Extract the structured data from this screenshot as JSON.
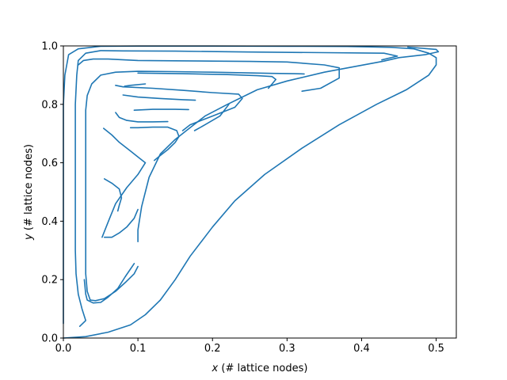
{
  "chart_data": {
    "type": "line",
    "title": "",
    "xlabel_var": "x",
    "xlabel_rest": " (# lattice nodes)",
    "ylabel_var": "y",
    "ylabel_rest": " (# lattice nodes)",
    "xlim": [
      0,
      0.527
    ],
    "ylim": [
      0,
      1.0
    ],
    "xticks": [
      0.0,
      0.1,
      0.2,
      0.3,
      0.4,
      0.5
    ],
    "xtick_labels": [
      "0.0",
      "0.1",
      "0.2",
      "0.3",
      "0.4",
      "0.5"
    ],
    "yticks": [
      0.0,
      0.2,
      0.4,
      0.6,
      0.8,
      1.0
    ],
    "ytick_labels": [
      "0.0",
      "0.2",
      "0.4",
      "0.6",
      "0.8",
      "1.0"
    ],
    "grid": false,
    "line_color": "#1f77b4",
    "series": [
      {
        "points": [
          [
            0.0,
            0.0
          ],
          [
            0.03,
            0.005
          ],
          [
            0.06,
            0.02
          ],
          [
            0.09,
            0.045
          ],
          [
            0.11,
            0.08
          ],
          [
            0.13,
            0.13
          ],
          [
            0.15,
            0.2
          ],
          [
            0.17,
            0.28
          ],
          [
            0.2,
            0.38
          ],
          [
            0.23,
            0.47
          ],
          [
            0.27,
            0.56
          ],
          [
            0.32,
            0.65
          ],
          [
            0.37,
            0.73
          ],
          [
            0.42,
            0.8
          ],
          [
            0.46,
            0.85
          ],
          [
            0.49,
            0.9
          ],
          [
            0.5,
            0.935
          ],
          [
            0.5,
            0.96
          ],
          [
            0.49,
            0.975
          ],
          [
            0.47,
            0.99
          ],
          [
            0.44,
            0.995
          ],
          [
            0.38,
            0.998
          ],
          [
            0.3,
            0.999
          ],
          [
            0.2,
            0.9995
          ],
          [
            0.1,
            0.9995
          ],
          [
            0.05,
            0.999
          ],
          [
            0.02,
            0.99
          ],
          [
            0.007,
            0.97
          ],
          [
            0.002,
            0.9
          ],
          [
            0.0,
            0.8
          ],
          [
            0.0,
            0.6
          ],
          [
            0.0,
            0.4
          ],
          [
            0.0,
            0.2
          ],
          [
            0.0,
            0.05
          ]
        ]
      },
      {
        "points": [
          [
            0.462,
            0.996
          ],
          [
            0.5,
            0.988
          ],
          [
            0.503,
            0.98
          ],
          [
            0.485,
            0.97
          ],
          [
            0.45,
            0.96
          ],
          [
            0.43,
            0.948
          ],
          [
            0.35,
            0.91
          ],
          [
            0.3,
            0.88
          ],
          [
            0.26,
            0.85
          ],
          [
            0.22,
            0.8
          ],
          [
            0.19,
            0.76
          ],
          [
            0.17,
            0.72
          ],
          [
            0.15,
            0.68
          ],
          [
            0.13,
            0.63
          ],
          [
            0.115,
            0.55
          ],
          [
            0.105,
            0.45
          ],
          [
            0.1,
            0.37
          ],
          [
            0.1,
            0.33
          ]
        ]
      },
      {
        "points": [
          [
            0.427,
            0.952
          ],
          [
            0.448,
            0.965
          ],
          [
            0.43,
            0.975
          ],
          [
            0.4,
            0.976
          ],
          [
            0.35,
            0.977
          ],
          [
            0.25,
            0.979
          ],
          [
            0.15,
            0.982
          ],
          [
            0.08,
            0.983
          ],
          [
            0.05,
            0.984
          ],
          [
            0.03,
            0.975
          ],
          [
            0.02,
            0.95
          ],
          [
            0.018,
            0.9
          ],
          [
            0.016,
            0.8
          ],
          [
            0.016,
            0.7
          ],
          [
            0.016,
            0.6
          ],
          [
            0.016,
            0.5
          ],
          [
            0.016,
            0.4
          ],
          [
            0.016,
            0.3
          ],
          [
            0.017,
            0.22
          ],
          [
            0.02,
            0.15
          ],
          [
            0.025,
            0.1
          ],
          [
            0.028,
            0.075
          ],
          [
            0.03,
            0.06
          ],
          [
            0.022,
            0.04
          ]
        ]
      },
      {
        "points": [
          [
            0.32,
            0.845
          ],
          [
            0.345,
            0.855
          ],
          [
            0.37,
            0.89
          ],
          [
            0.37,
            0.925
          ],
          [
            0.35,
            0.935
          ],
          [
            0.3,
            0.945
          ],
          [
            0.25,
            0.947
          ],
          [
            0.2,
            0.948
          ],
          [
            0.15,
            0.949
          ],
          [
            0.1,
            0.95
          ],
          [
            0.06,
            0.955
          ],
          [
            0.04,
            0.955
          ],
          [
            0.027,
            0.95
          ],
          [
            0.02,
            0.935
          ]
        ]
      },
      {
        "points": [
          [
            0.323,
            0.904
          ],
          [
            0.31,
            0.905
          ],
          [
            0.28,
            0.906
          ],
          [
            0.24,
            0.908
          ],
          [
            0.2,
            0.91
          ],
          [
            0.15,
            0.912
          ],
          [
            0.1,
            0.913
          ],
          [
            0.07,
            0.91
          ],
          [
            0.05,
            0.9
          ],
          [
            0.038,
            0.87
          ],
          [
            0.032,
            0.83
          ],
          [
            0.03,
            0.78
          ],
          [
            0.03,
            0.7
          ],
          [
            0.03,
            0.6
          ],
          [
            0.03,
            0.5
          ],
          [
            0.03,
            0.4
          ],
          [
            0.03,
            0.3
          ],
          [
            0.03,
            0.22
          ],
          [
            0.032,
            0.16
          ],
          [
            0.036,
            0.13
          ]
        ]
      },
      {
        "points": [
          [
            0.036,
            0.13
          ],
          [
            0.043,
            0.128
          ],
          [
            0.055,
            0.135
          ],
          [
            0.07,
            0.16
          ],
          [
            0.083,
            0.19
          ],
          [
            0.095,
            0.22
          ],
          [
            0.1,
            0.245
          ]
        ]
      },
      {
        "points": [
          [
            0.275,
            0.855
          ],
          [
            0.28,
            0.87
          ],
          [
            0.285,
            0.885
          ],
          [
            0.28,
            0.895
          ],
          [
            0.26,
            0.898
          ],
          [
            0.22,
            0.902
          ],
          [
            0.16,
            0.905
          ],
          [
            0.1,
            0.907
          ]
        ]
      },
      {
        "points": [
          [
            0.16,
            0.71
          ],
          [
            0.17,
            0.73
          ],
          [
            0.2,
            0.76
          ],
          [
            0.23,
            0.79
          ],
          [
            0.24,
            0.82
          ],
          [
            0.235,
            0.835
          ],
          [
            0.2,
            0.84
          ],
          [
            0.16,
            0.848
          ],
          [
            0.12,
            0.855
          ],
          [
            0.08,
            0.86
          ],
          [
            0.07,
            0.865
          ]
        ]
      },
      {
        "points": [
          [
            0.082,
            0.862
          ],
          [
            0.09,
            0.865
          ],
          [
            0.11,
            0.87
          ]
        ]
      },
      {
        "points": [
          [
            0.08,
            0.832
          ],
          [
            0.1,
            0.825
          ],
          [
            0.13,
            0.82
          ],
          [
            0.16,
            0.816
          ],
          [
            0.177,
            0.814
          ]
        ]
      },
      {
        "points": [
          [
            0.176,
            0.71
          ],
          [
            0.19,
            0.73
          ],
          [
            0.21,
            0.76
          ],
          [
            0.222,
            0.8
          ]
        ]
      },
      {
        "points": [
          [
            0.095,
            0.78
          ],
          [
            0.12,
            0.783
          ],
          [
            0.15,
            0.783
          ],
          [
            0.168,
            0.782
          ]
        ]
      },
      {
        "points": [
          [
            0.07,
            0.772
          ],
          [
            0.075,
            0.755
          ],
          [
            0.085,
            0.745
          ],
          [
            0.1,
            0.74
          ],
          [
            0.12,
            0.74
          ],
          [
            0.14,
            0.741
          ]
        ]
      },
      {
        "points": [
          [
            0.122,
            0.608
          ],
          [
            0.13,
            0.625
          ],
          [
            0.14,
            0.645
          ],
          [
            0.15,
            0.67
          ],
          [
            0.155,
            0.69
          ],
          [
            0.152,
            0.71
          ],
          [
            0.14,
            0.722
          ],
          [
            0.12,
            0.722
          ],
          [
            0.1,
            0.72
          ],
          [
            0.09,
            0.72
          ]
        ]
      },
      {
        "points": [
          [
            0.054,
            0.718
          ],
          [
            0.065,
            0.695
          ],
          [
            0.075,
            0.67
          ],
          [
            0.09,
            0.64
          ],
          [
            0.1,
            0.62
          ],
          [
            0.11,
            0.6
          ],
          [
            0.1,
            0.56
          ],
          [
            0.085,
            0.515
          ],
          [
            0.07,
            0.46
          ],
          [
            0.062,
            0.41
          ],
          [
            0.055,
            0.365
          ],
          [
            0.052,
            0.345
          ]
        ]
      },
      {
        "points": [
          [
            0.055,
            0.345
          ],
          [
            0.065,
            0.345
          ],
          [
            0.075,
            0.36
          ],
          [
            0.085,
            0.38
          ],
          [
            0.095,
            0.41
          ],
          [
            0.1,
            0.44
          ]
        ]
      },
      {
        "points": [
          [
            0.055,
            0.545
          ],
          [
            0.065,
            0.53
          ],
          [
            0.075,
            0.51
          ],
          [
            0.078,
            0.48
          ],
          [
            0.075,
            0.455
          ],
          [
            0.073,
            0.435
          ]
        ]
      },
      {
        "points": [
          [
            0.028,
            0.2
          ],
          [
            0.03,
            0.15
          ],
          [
            0.032,
            0.13
          ],
          [
            0.04,
            0.12
          ],
          [
            0.05,
            0.122
          ],
          [
            0.06,
            0.14
          ],
          [
            0.073,
            0.17
          ],
          [
            0.083,
            0.21
          ],
          [
            0.095,
            0.255
          ]
        ]
      }
    ]
  }
}
